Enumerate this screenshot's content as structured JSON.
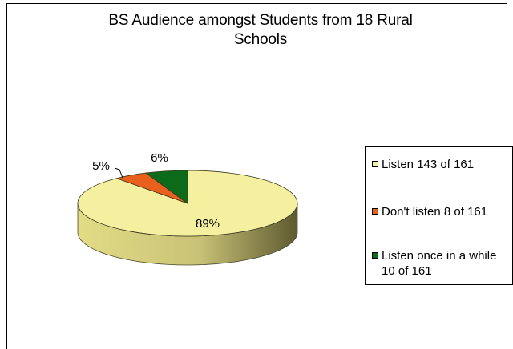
{
  "chart_data": {
    "type": "pie",
    "title": "BS Audience amongst Students from 18 Rural Schools",
    "title_line1": "BS Audience amongst Students from 18 Rural",
    "title_line2": "Schools",
    "slices": [
      {
        "label": "Listen 143 of 161",
        "value": 143,
        "percent_label": "89%",
        "color": "#F5F0A0"
      },
      {
        "label": "Don't listen 8 of 161",
        "value": 8,
        "percent_label": "5%",
        "color": "#E8601C"
      },
      {
        "label": "Listen once in a while 10 of 161",
        "value": 10,
        "percent_label": "6%",
        "color": "#0B6B1B"
      }
    ],
    "legend": {
      "position": "right",
      "items": [
        "Listen 143 of 161",
        "Don't listen 8 of 161",
        "Listen once in a while 10 of 161"
      ]
    },
    "style": "3d-pie"
  }
}
